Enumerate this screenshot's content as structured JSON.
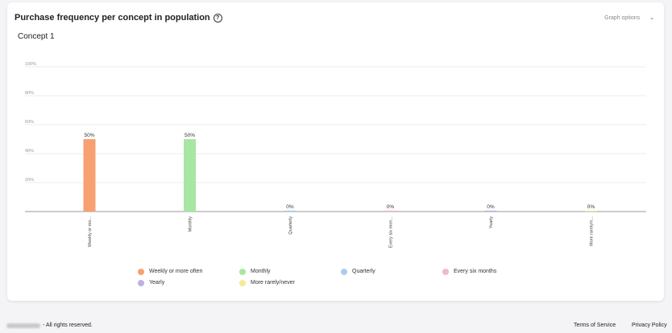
{
  "card": {
    "title": "Purchase frequency per concept in population",
    "help_icon": "question-circle-icon",
    "graph_options_label": "Graph options",
    "concept_title": "Concept 1"
  },
  "chart_data": {
    "type": "bar",
    "categories": [
      "Weekly or mo...",
      "Monthly",
      "Quarterly",
      "Every six mon...",
      "Yearly",
      "More rarely/n..."
    ],
    "values": [
      50,
      50,
      0,
      0,
      0,
      0
    ],
    "data_labels": [
      "50%",
      "50%",
      "0%",
      "0%",
      "0%",
      "0%"
    ],
    "colors": [
      "#f7a072",
      "#a8e6a3",
      "#a9cdef",
      "#f4b8c8",
      "#b8b2e8",
      "#f3ec94"
    ],
    "ylim": [
      0,
      100
    ],
    "yticks": [
      20,
      40,
      60,
      80,
      100
    ],
    "ytick_labels": [
      "20%",
      "40%",
      "60%",
      "80%",
      "100%"
    ],
    "grid": true
  },
  "legend": {
    "items": [
      {
        "label": "Weekly or more often",
        "color": "#f7a072"
      },
      {
        "label": "Monthly",
        "color": "#a8e6a3"
      },
      {
        "label": "Quarterly",
        "color": "#a9cdef"
      },
      {
        "label": "Every six months",
        "color": "#f4b8c8"
      },
      {
        "label": "Yearly",
        "color": "#b8b2e8"
      },
      {
        "label": "More rarely/never",
        "color": "#f3ec94"
      }
    ]
  },
  "footer": {
    "copyright": "- All rights reserved.",
    "terms": "Terms of Service",
    "privacy": "Privacy Policy"
  }
}
